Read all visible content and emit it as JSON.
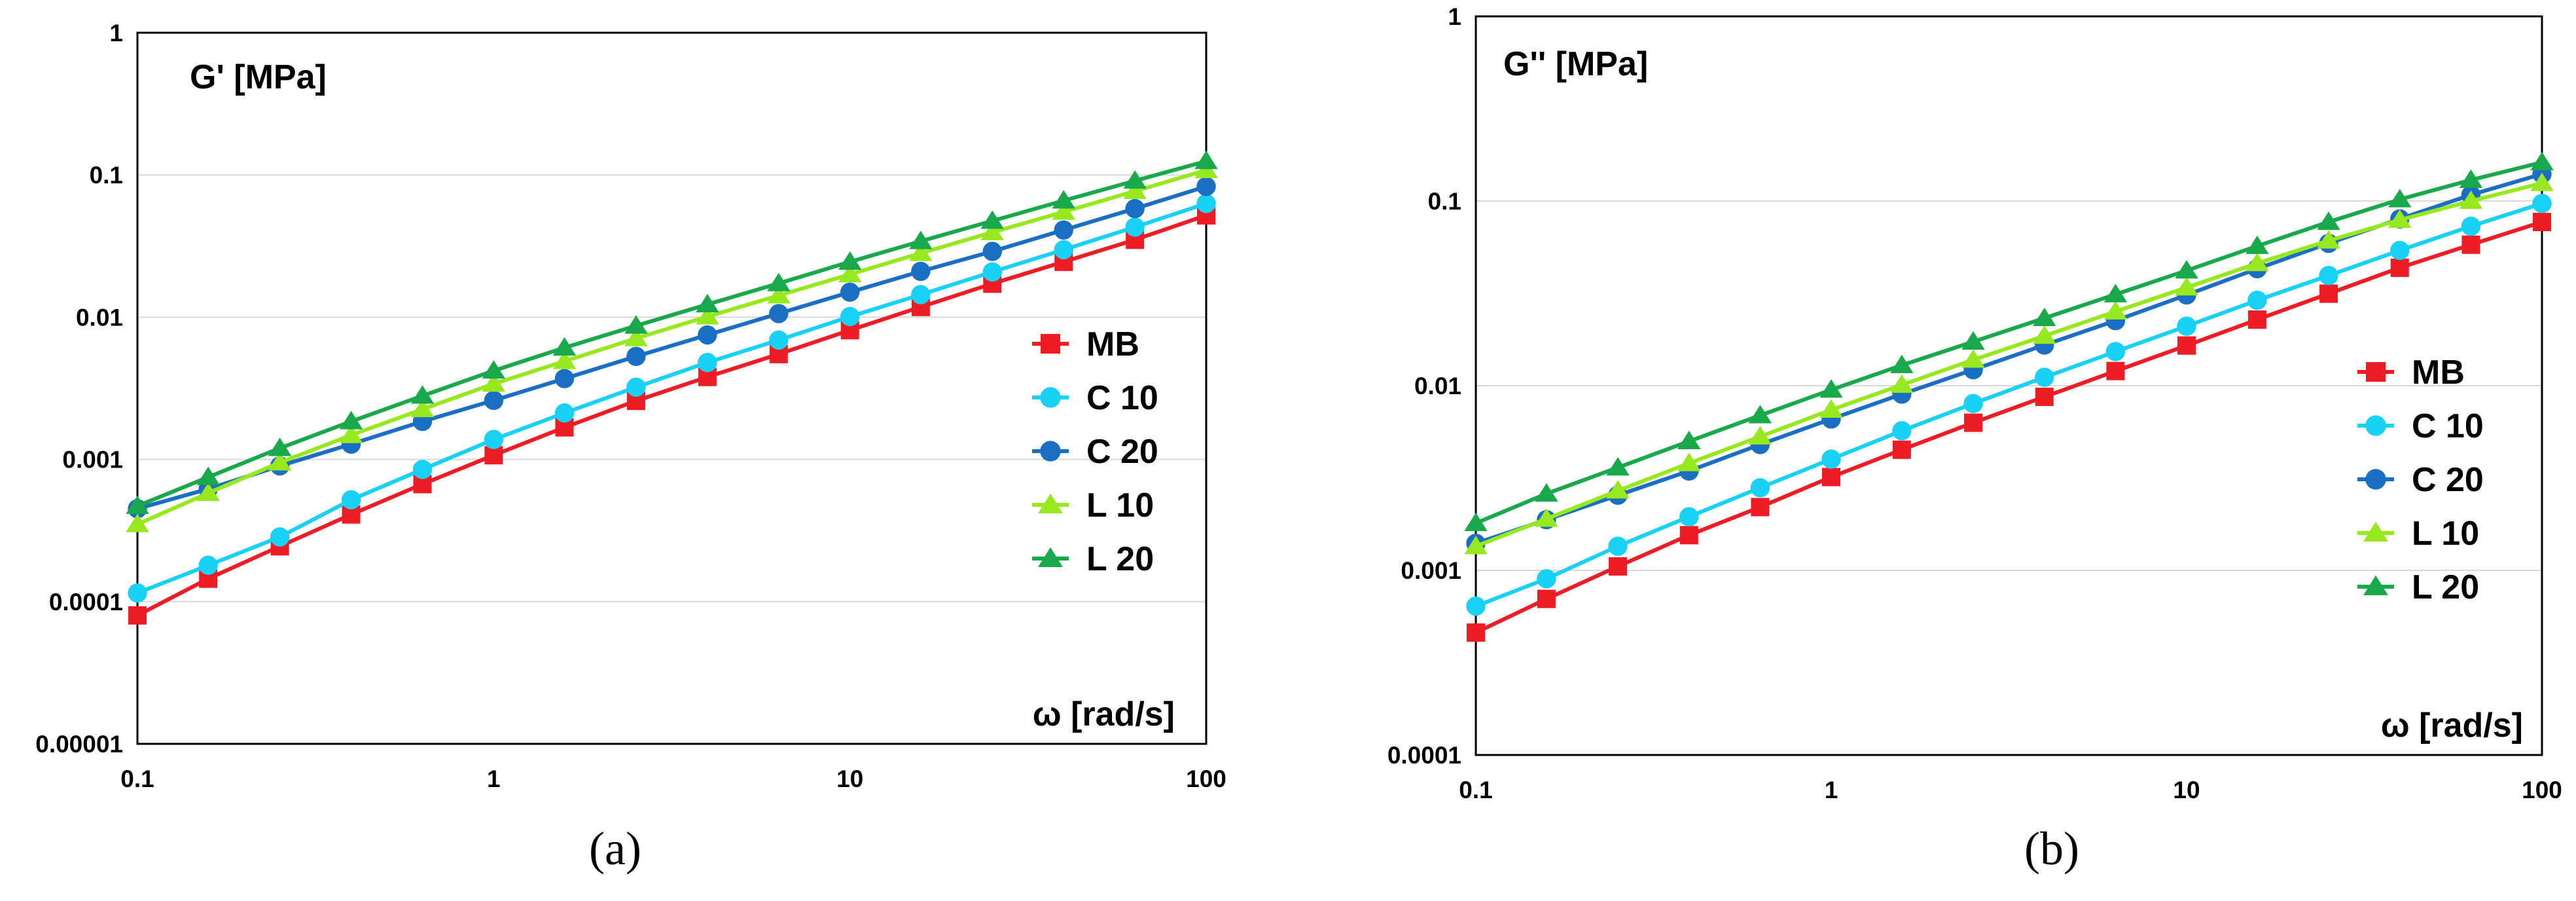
{
  "colors": {
    "MB": "#ee1c25",
    "C 10": "#19d0f5",
    "C 20": "#1a6fc4",
    "L 10": "#97e81e",
    "L 20": "#19a84a"
  },
  "chart_data": [
    {
      "type": "line",
      "panel_label": "(a)",
      "ylabel": "G' [MPa]",
      "xlabel": "ω [rad/s]",
      "x_scale": "log",
      "y_scale": "log",
      "xlim": [
        0.1,
        100
      ],
      "ylim": [
        1e-05,
        1
      ],
      "x_ticks": [
        0.1,
        1,
        10,
        100
      ],
      "x_tick_labels": [
        "0.1",
        "1",
        "10",
        "100"
      ],
      "y_ticks": [
        1e-05,
        0.0001,
        0.001,
        0.01,
        0.1,
        1
      ],
      "y_tick_labels": [
        "0.00001",
        "0.0001",
        "0.001",
        "0.01",
        "0.1",
        "1"
      ],
      "legend_position": "right",
      "x": [
        0.1,
        0.158,
        0.251,
        0.398,
        0.631,
        1,
        1.58,
        2.51,
        3.98,
        6.31,
        10,
        15.8,
        25.1,
        39.8,
        63.1,
        100
      ],
      "series": [
        {
          "name": "MB",
          "marker": "square",
          "values": [
            8e-05,
            0.000145,
            0.000245,
            0.00041,
            0.00067,
            0.00107,
            0.00168,
            0.00258,
            0.0038,
            0.0055,
            0.0081,
            0.0118,
            0.0172,
            0.0245,
            0.035,
            0.052
          ]
        },
        {
          "name": "C 10",
          "marker": "circle",
          "values": [
            0.000115,
            0.00018,
            0.000285,
            0.00052,
            0.00085,
            0.00138,
            0.00212,
            0.00322,
            0.0048,
            0.0069,
            0.0101,
            0.0144,
            0.0208,
            0.0298,
            0.043,
            0.063
          ]
        },
        {
          "name": "C 20",
          "marker": "circle",
          "values": [
            0.00045,
            0.00062,
            0.0009,
            0.00128,
            0.00185,
            0.0026,
            0.0037,
            0.0053,
            0.0075,
            0.0106,
            0.015,
            0.021,
            0.029,
            0.041,
            0.058,
            0.083
          ]
        },
        {
          "name": "L 10",
          "marker": "triangle",
          "values": [
            0.00035,
            0.00058,
            0.00095,
            0.00148,
            0.00225,
            0.0034,
            0.0049,
            0.0071,
            0.0101,
            0.0142,
            0.02,
            0.0282,
            0.0395,
            0.055,
            0.077,
            0.108
          ]
        },
        {
          "name": "L 20",
          "marker": "triangle",
          "values": [
            0.00047,
            0.00075,
            0.0012,
            0.00185,
            0.0028,
            0.0042,
            0.0061,
            0.0087,
            0.0123,
            0.0173,
            0.0245,
            0.0342,
            0.0475,
            0.066,
            0.091,
            0.125
          ]
        }
      ]
    },
    {
      "type": "line",
      "panel_label": "(b)",
      "ylabel": "G'' [MPa]",
      "xlabel": "ω [rad/s]",
      "x_scale": "log",
      "y_scale": "log",
      "xlim": [
        0.1,
        100
      ],
      "ylim": [
        0.0001,
        1
      ],
      "x_ticks": [
        0.1,
        1,
        10,
        100
      ],
      "x_tick_labels": [
        "0.1",
        "1",
        "10",
        "100"
      ],
      "y_ticks": [
        0.0001,
        0.001,
        0.01,
        0.1,
        1
      ],
      "y_tick_labels": [
        "0.0001",
        "0.001",
        "0.01",
        "0.1",
        "1"
      ],
      "legend_position": "right",
      "x": [
        0.1,
        0.158,
        0.251,
        0.398,
        0.631,
        1,
        1.58,
        2.51,
        3.98,
        6.31,
        10,
        15.8,
        25.1,
        39.8,
        63.1,
        100
      ],
      "series": [
        {
          "name": "MB",
          "marker": "square",
          "values": [
            0.00046,
            0.0007,
            0.00105,
            0.00155,
            0.0022,
            0.0032,
            0.0045,
            0.0063,
            0.0087,
            0.012,
            0.0165,
            0.0228,
            0.0315,
            0.0435,
            0.058,
            0.077
          ]
        },
        {
          "name": "C 10",
          "marker": "circle",
          "values": [
            0.00064,
            0.0009,
            0.00135,
            0.00195,
            0.0028,
            0.004,
            0.0057,
            0.008,
            0.0111,
            0.0153,
            0.021,
            0.029,
            0.0395,
            0.054,
            0.073,
            0.097
          ]
        },
        {
          "name": "C 20",
          "marker": "circle",
          "values": [
            0.0014,
            0.00188,
            0.00255,
            0.00345,
            0.0048,
            0.0066,
            0.009,
            0.0122,
            0.0166,
            0.0225,
            0.031,
            0.043,
            0.059,
            0.08,
            0.108,
            0.14
          ]
        },
        {
          "name": "L 10",
          "marker": "triangle",
          "values": [
            0.00135,
            0.0019,
            0.0027,
            0.0038,
            0.0053,
            0.0074,
            0.0101,
            0.0138,
            0.0186,
            0.0252,
            0.034,
            0.046,
            0.061,
            0.079,
            0.1,
            0.125
          ]
        },
        {
          "name": "L 20",
          "marker": "triangle",
          "values": [
            0.0018,
            0.0026,
            0.0036,
            0.005,
            0.0069,
            0.0095,
            0.0129,
            0.0173,
            0.0232,
            0.0312,
            0.042,
            0.057,
            0.077,
            0.102,
            0.13,
            0.162
          ]
        }
      ]
    }
  ]
}
